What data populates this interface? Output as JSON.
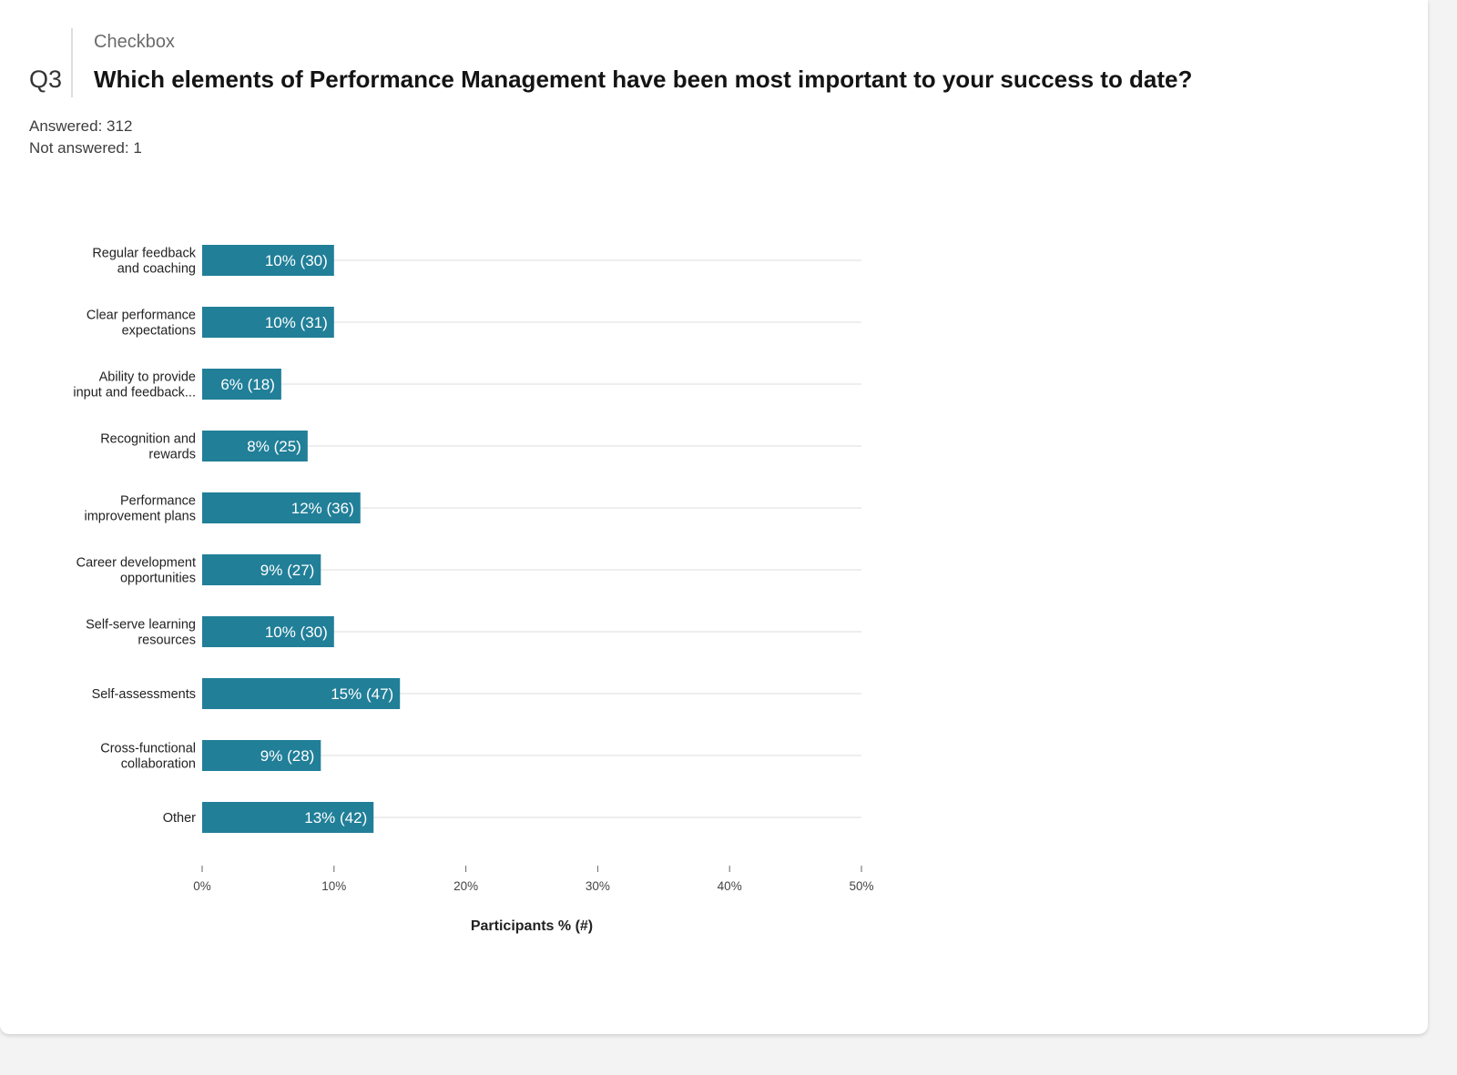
{
  "question": {
    "number": "Q3",
    "type": "Checkbox",
    "title": "Which elements of Performance Management have been most important to your success to date?"
  },
  "stats": {
    "answered": "Answered: 312",
    "not_answered": "Not answered: 1"
  },
  "colors": {
    "bar": "#217f98",
    "gridline": "#dcdcdc"
  },
  "chart_data": {
    "type": "bar",
    "orientation": "horizontal",
    "categories": [
      [
        "Regular feedback",
        "and coaching"
      ],
      [
        "Clear performance",
        "expectations"
      ],
      [
        "Ability to provide",
        "input and feedback..."
      ],
      [
        "Recognition and",
        "rewards"
      ],
      [
        "Performance",
        "improvement plans"
      ],
      [
        "Career development",
        "opportunities"
      ],
      [
        "Self-serve learning",
        "resources"
      ],
      [
        "Self-assessments"
      ],
      [
        "Cross-functional",
        "collaboration"
      ],
      [
        "Other"
      ]
    ],
    "values": [
      10,
      10,
      6,
      8,
      12,
      9,
      10,
      15,
      9,
      13
    ],
    "counts": [
      30,
      31,
      18,
      25,
      36,
      27,
      30,
      47,
      28,
      42
    ],
    "value_labels": [
      "10% (30)",
      "10% (31)",
      "6% (18)",
      "8% (25)",
      "12% (36)",
      "9% (27)",
      "10% (30)",
      "15% (47)",
      "9% (28)",
      "13% (42)"
    ],
    "xticks": [
      "0%",
      "10%",
      "20%",
      "30%",
      "40%",
      "50%"
    ],
    "xlim": [
      0,
      50
    ],
    "xlabel": "Participants % (#)",
    "grid": true
  }
}
